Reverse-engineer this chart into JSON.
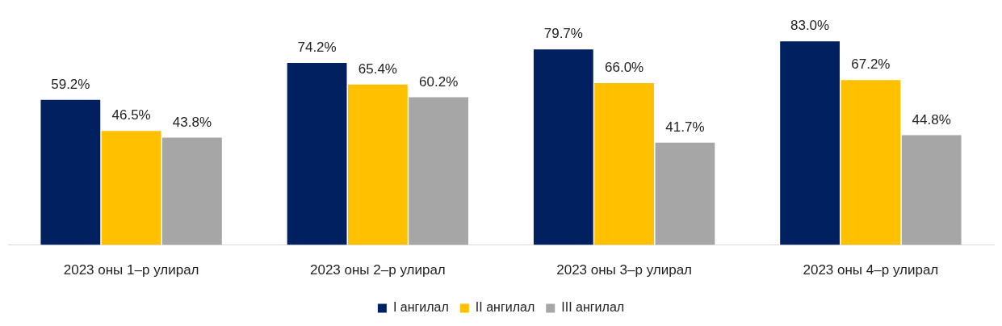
{
  "chart_data": {
    "type": "bar",
    "categories": [
      "2023 оны 1–р улирал",
      "2023 оны 2–р улирал",
      "2023 оны 3–р улирал",
      "2023 оны 4–р улирал"
    ],
    "series": [
      {
        "name": "I ангилал",
        "color": "#002060",
        "values": [
          59.2,
          74.2,
          79.7,
          83.0
        ],
        "value_labels": [
          "59.2%",
          "74.2%",
          "79.7%",
          "83.0%"
        ]
      },
      {
        "name": "II ангилал",
        "color": "#ffc000",
        "values": [
          46.5,
          65.4,
          66.0,
          67.2
        ],
        "value_labels": [
          "46.5%",
          "65.4%",
          "66.0%",
          "67.2%"
        ]
      },
      {
        "name": "III ангилал",
        "color": "#a6a6a6",
        "values": [
          43.8,
          60.2,
          41.7,
          44.8
        ],
        "value_labels": [
          "43.8%",
          "60.2%",
          "41.7%",
          "44.8%"
        ]
      }
    ],
    "legend": "bottom",
    "grid": false,
    "tick_labels": "x"
  }
}
